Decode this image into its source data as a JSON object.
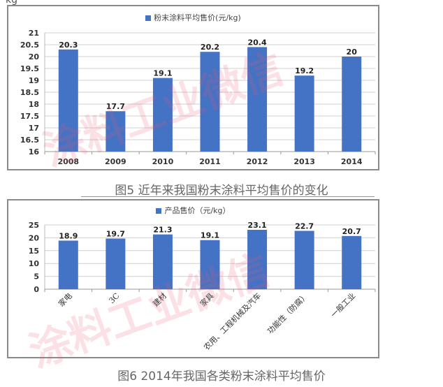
{
  "top_fragment": "kg",
  "watermark": "涂料工业微信",
  "captions": {
    "fig5": "图5 近年来我国粉末涂料平均售价的变化",
    "fig6": "图6 2014年我国各类粉末涂料平均售价"
  },
  "colors": {
    "bar": "#4472c4",
    "bar_dark": "#3e67b1",
    "grid": "#d0d0d0",
    "frame": "#8a8a8a",
    "watermark": "#eb5a6e"
  },
  "chart_data": [
    {
      "type": "bar",
      "title": "",
      "legend": [
        "粉末涂料平均售价(元/kg)"
      ],
      "legend_position": "top",
      "categories": [
        "2008",
        "2009",
        "2010",
        "2011",
        "2012",
        "2013",
        "2014"
      ],
      "values": [
        20.3,
        17.7,
        19.1,
        20.2,
        20.4,
        19.2,
        20
      ],
      "value_labels": [
        "20.3",
        "17.7",
        "19.1",
        "20.2",
        "20.4",
        "19.2",
        "20"
      ],
      "yticks": [
        "16",
        "16.5",
        "17",
        "17.5",
        "18",
        "18.5",
        "19",
        "19.5",
        "20",
        "20.5",
        "21"
      ],
      "xlabel": "",
      "ylabel": "",
      "ylim": [
        16,
        21
      ],
      "grid": true
    },
    {
      "type": "bar",
      "title": "",
      "legend": [
        "产品售价（元/kg）"
      ],
      "legend_position": "top",
      "categories": [
        "家电",
        "3C",
        "建材",
        "家具",
        "农用、工程机械及汽车",
        "功能性（防腐）",
        "一般工业"
      ],
      "values": [
        18.9,
        19.7,
        21.3,
        19.1,
        23.1,
        22.7,
        20.7
      ],
      "value_labels": [
        "18.9",
        "19.7",
        "21.3",
        "19.1",
        "23.1",
        "22.7",
        "20.7"
      ],
      "yticks": [
        "0",
        "5",
        "10",
        "15",
        "20",
        "25"
      ],
      "xlabel": "",
      "ylabel": "",
      "ylim": [
        0,
        25
      ],
      "grid": true,
      "xtick_rotation": -45
    }
  ]
}
